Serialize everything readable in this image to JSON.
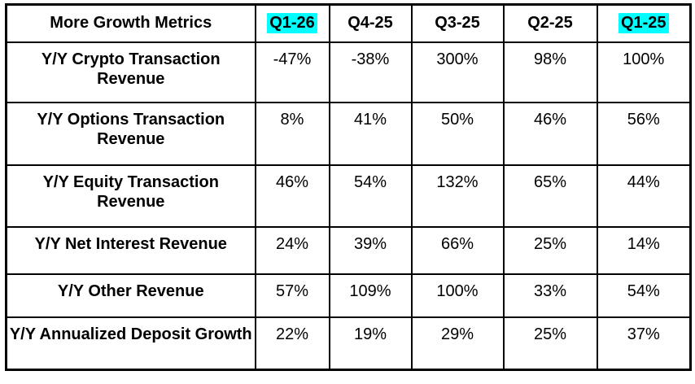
{
  "chart_data": {
    "type": "table",
    "title": "More Growth Metrics",
    "columns": [
      "Q1-26",
      "Q4-25",
      "Q3-25",
      "Q2-25",
      "Q1-25"
    ],
    "column_highlighted": [
      true,
      false,
      false,
      false,
      true
    ],
    "rows": [
      {
        "metric": "Y/Y Crypto Transaction Revenue",
        "values": [
          "-47%",
          "-38%",
          "300%",
          "98%",
          "100%"
        ],
        "values_pct": [
          -47,
          -38,
          300,
          98,
          100
        ]
      },
      {
        "metric": "Y/Y Options Transaction Revenue",
        "values": [
          "8%",
          "41%",
          "50%",
          "46%",
          "56%"
        ],
        "values_pct": [
          8,
          41,
          50,
          46,
          56
        ]
      },
      {
        "metric": "Y/Y Equity Transaction Revenue",
        "values": [
          "46%",
          "54%",
          "132%",
          "65%",
          "44%"
        ],
        "values_pct": [
          46,
          54,
          132,
          65,
          44
        ]
      },
      {
        "metric": "Y/Y Net Interest Revenue",
        "values": [
          "24%",
          "39%",
          "66%",
          "25%",
          "14%"
        ],
        "values_pct": [
          24,
          39,
          66,
          25,
          14
        ]
      },
      {
        "metric": "Y/Y Other Revenue",
        "values": [
          "57%",
          "109%",
          "100%",
          "33%",
          "54%"
        ],
        "values_pct": [
          57,
          109,
          100,
          33,
          54
        ]
      },
      {
        "metric": "Y/Y Annualized Deposit Growth",
        "values": [
          "22%",
          "19%",
          "29%",
          "25%",
          "37%"
        ],
        "values_pct": [
          22,
          19,
          29,
          25,
          37
        ]
      }
    ]
  },
  "colors": {
    "highlight": "#00FFFF",
    "border": "#000000",
    "text": "#000000",
    "background": "#FFFFFF"
  }
}
